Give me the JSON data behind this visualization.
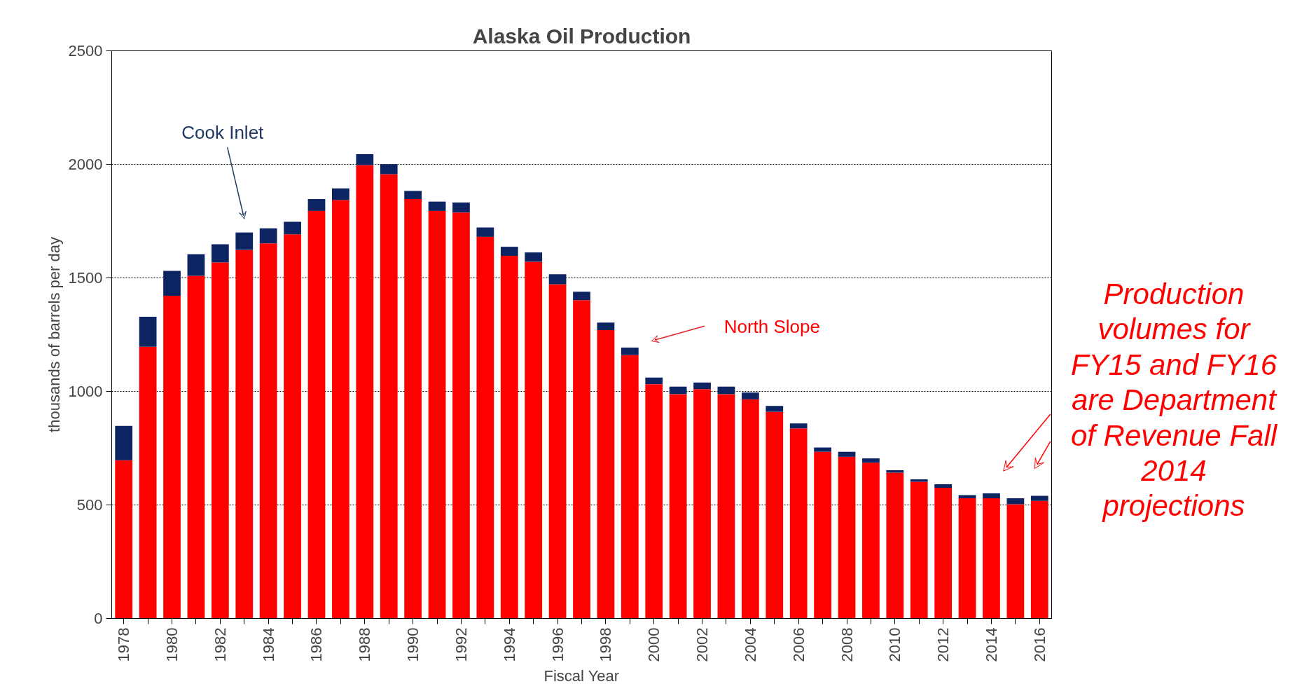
{
  "chart_data": {
    "type": "bar",
    "title": "Alaska Oil Production",
    "xlabel": "Fiscal Year",
    "ylabel": "thousands of barrels per day",
    "categories": [
      "1978",
      null,
      "1980",
      null,
      "1982",
      null,
      "1984",
      null,
      "1986",
      null,
      "1988",
      null,
      "1990",
      null,
      "1992",
      null,
      "1994",
      null,
      "1996",
      null,
      "1998",
      null,
      "2000",
      null,
      "2002",
      null,
      "2004",
      null,
      "2006",
      null,
      "2008",
      null,
      "2010",
      null,
      "2012",
      null,
      "2014",
      null,
      "2016"
    ],
    "series": [
      {
        "name": "North Slope",
        "color": "#ff0000",
        "values": [
          697,
          1197,
          1421,
          1509,
          1568,
          1623,
          1652,
          1692,
          1795,
          1843,
          1997,
          1957,
          1847,
          1795,
          1788,
          1681,
          1597,
          1571,
          1472,
          1402,
          1270,
          1160,
          1032,
          988,
          1010,
          988,
          965,
          910,
          837,
          734,
          712,
          686,
          642,
          602,
          576,
          529,
          529,
          503,
          518
        ]
      },
      {
        "name": "Cook Inlet",
        "color": "#0d2463",
        "values": [
          151,
          132,
          110,
          95,
          80,
          77,
          66,
          55,
          52,
          51,
          48,
          44,
          36,
          41,
          44,
          41,
          40,
          41,
          44,
          37,
          33,
          33,
          29,
          33,
          29,
          33,
          30,
          26,
          22,
          19,
          22,
          19,
          11,
          11,
          15,
          14,
          22,
          26,
          22
        ]
      }
    ],
    "stacked": true,
    "ylim": [
      0,
      2500
    ],
    "yticks": [
      0,
      500,
      1000,
      1500,
      2000,
      2500
    ],
    "grid": "y",
    "annotations": [
      "Production volumes for FY15 and FY16 are Department of Revenue Fall 2014 projections"
    ]
  }
}
